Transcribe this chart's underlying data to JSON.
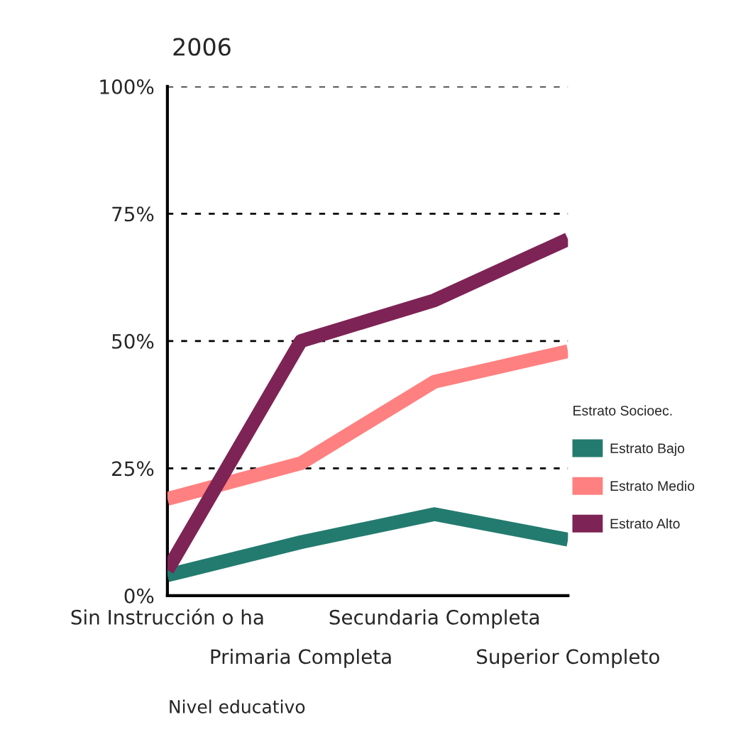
{
  "chart_data": {
    "type": "line",
    "title": "2006",
    "xlabel": "Nivel educativo",
    "legend_title": "Estrato Socioec.",
    "categories": [
      "Sin Instrucción o ha",
      "Primaria Completa",
      "Secundaria Completa",
      "Superior Completo"
    ],
    "series": [
      {
        "name": "Estrato Bajo",
        "color": "#237b6f",
        "values": [
          4,
          10.5,
          16,
          11
        ]
      },
      {
        "name": "Estrato Medio",
        "color": "#ff8080",
        "values": [
          19,
          26,
          42,
          48
        ]
      },
      {
        "name": "Estrato Alto",
        "color": "#7e2355",
        "values": [
          5,
          50,
          58,
          70
        ]
      }
    ],
    "ylim": [
      0,
      100
    ],
    "yticks": [
      {
        "value": 0,
        "label": "0%"
      },
      {
        "value": 25,
        "label": "25%"
      },
      {
        "value": 50,
        "label": "50%"
      },
      {
        "value": 75,
        "label": "75%"
      },
      {
        "value": 100,
        "label": "100%"
      }
    ],
    "grid": "y",
    "legend": "right",
    "marker": "none",
    "line_style": "solid"
  }
}
